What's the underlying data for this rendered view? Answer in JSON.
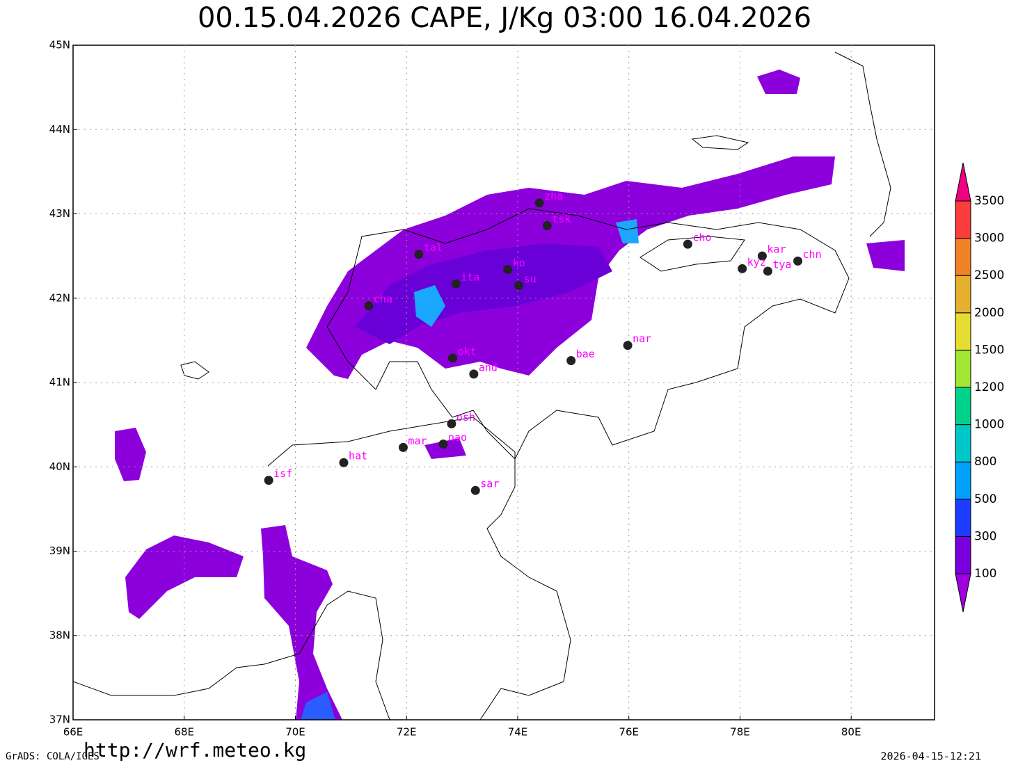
{
  "title": "00.15.04.2026 CAPE, J/Kg 03:00 16.04.2026",
  "map": {
    "xlim": [
      66,
      81.5
    ],
    "ylim": [
      37,
      45
    ],
    "grid": true,
    "xticks": [
      {
        "value": 66,
        "label": "66E"
      },
      {
        "value": 68,
        "label": "68E"
      },
      {
        "value": 70,
        "label": "70E"
      },
      {
        "value": 72,
        "label": "72E"
      },
      {
        "value": 74,
        "label": "74E"
      },
      {
        "value": 76,
        "label": "76E"
      },
      {
        "value": 78,
        "label": "78E"
      },
      {
        "value": 80,
        "label": "80E"
      }
    ],
    "yticks": [
      {
        "value": 37,
        "label": "37N"
      },
      {
        "value": 38,
        "label": "38N"
      },
      {
        "value": 39,
        "label": "39N"
      },
      {
        "value": 40,
        "label": "40N"
      },
      {
        "value": 41,
        "label": "41N"
      },
      {
        "value": 42,
        "label": "42N"
      },
      {
        "value": 43,
        "label": "43N"
      },
      {
        "value": 44,
        "label": "44N"
      },
      {
        "value": 45,
        "label": "45N"
      }
    ]
  },
  "stations": [
    {
      "label": "zha",
      "lon": 74.39,
      "lat": 43.13
    },
    {
      "label": "tsk",
      "lon": 74.53,
      "lat": 42.86
    },
    {
      "label": "cho",
      "lon": 77.06,
      "lat": 42.64
    },
    {
      "label": "tal",
      "lon": 72.22,
      "lat": 42.52
    },
    {
      "label": "kar",
      "lon": 78.4,
      "lat": 42.5
    },
    {
      "label": "chn",
      "lon": 79.04,
      "lat": 42.44
    },
    {
      "label": "kyz",
      "lon": 78.04,
      "lat": 42.35
    },
    {
      "label": "tya",
      "lon": 78.5,
      "lat": 42.32
    },
    {
      "label": "ko",
      "lon": 73.82,
      "lat": 42.34
    },
    {
      "label": "su",
      "lon": 74.02,
      "lat": 42.15
    },
    {
      "label": "ita",
      "lon": 72.89,
      "lat": 42.17
    },
    {
      "label": "cha",
      "lon": 71.32,
      "lat": 41.91
    },
    {
      "label": "nar",
      "lon": 75.98,
      "lat": 41.44
    },
    {
      "label": "bae",
      "lon": 74.96,
      "lat": 41.26
    },
    {
      "label": "okt",
      "lon": 72.83,
      "lat": 41.29
    },
    {
      "label": "and",
      "lon": 73.21,
      "lat": 41.1
    },
    {
      "label": "osh",
      "lon": 72.81,
      "lat": 40.51
    },
    {
      "label": "nao",
      "lon": 72.66,
      "lat": 40.27
    },
    {
      "label": "mar",
      "lon": 71.94,
      "lat": 40.23
    },
    {
      "label": "hat",
      "lon": 70.87,
      "lat": 40.05
    },
    {
      "label": "isf",
      "lon": 69.52,
      "lat": 39.84
    },
    {
      "label": "sar",
      "lon": 73.24,
      "lat": 39.72
    }
  ],
  "colorbar": {
    "levels": [
      100,
      300,
      500,
      800,
      1000,
      1200,
      1500,
      2000,
      2500,
      3000,
      3500
    ],
    "colors": [
      "#a000e0",
      "#7800dc",
      "#1e3cff",
      "#00a0ff",
      "#00c8c8",
      "#00d28c",
      "#a0e632",
      "#e6dc32",
      "#e6af2d",
      "#f08228",
      "#fa3c3c",
      "#f00082"
    ]
  },
  "footer": {
    "credit": "GrADS: COLA/IGES",
    "url": "http://wrf.meteo.kg",
    "timestamp": "2026-04-15-12:21"
  }
}
